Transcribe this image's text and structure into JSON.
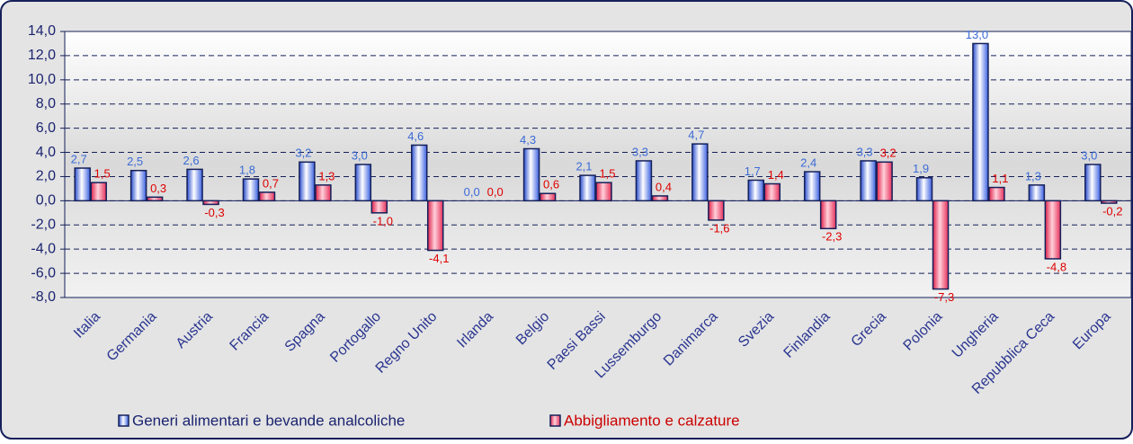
{
  "chart_data": {
    "type": "bar",
    "categories": [
      "Italia",
      "Germania",
      "Austria",
      "Francia",
      "Spagna",
      "Portogallo",
      "Regno Unito",
      "Irlanda",
      "Belgio",
      "Paesi Bassi",
      "Lussemburgo",
      "Danimarca",
      "Svezia",
      "Finlandia",
      "Grecia",
      "Polonia",
      "Ungheria",
      "Repubblica Ceca",
      "Europa"
    ],
    "series": [
      {
        "name": "Generi alimentari e bevande analcoliche",
        "color": "#6f9bff",
        "values": [
          2.7,
          2.5,
          2.6,
          1.8,
          3.2,
          3.0,
          4.6,
          0.0,
          4.3,
          2.1,
          3.3,
          4.7,
          1.7,
          2.4,
          3.3,
          1.9,
          13.0,
          1.3,
          3.0
        ],
        "value_labels": [
          "2,7",
          "2,5",
          "2,6",
          "1,8",
          "3,2",
          "3,0",
          "4,6",
          "0,0",
          "4,3",
          "2,1",
          "3,3",
          "4,7",
          "1,7",
          "2,4",
          "3,3",
          "1,9",
          "13,0",
          "1,3",
          "3,0"
        ]
      },
      {
        "name": "Abbigliamento e calzature",
        "color": "#ff6f8c",
        "values": [
          1.5,
          0.3,
          -0.3,
          0.7,
          1.3,
          -1.0,
          -4.1,
          0.0,
          0.6,
          1.5,
          0.4,
          -1.6,
          1.4,
          -2.3,
          3.2,
          -7.3,
          1.1,
          -4.8,
          -0.2
        ],
        "value_labels": [
          "1,5",
          "0,3",
          "-0,3",
          "0,7",
          "1,3",
          "-1,0",
          "-4,1",
          "0,0",
          "0,6",
          "1,5",
          "0,4",
          "-1,6",
          "1,4",
          "-2,3",
          "3,2",
          "-7,3",
          "1,1",
          "-4,8",
          "-0,2"
        ]
      }
    ],
    "ylim": [
      -8,
      14
    ],
    "yticks": [
      {
        "value": -8,
        "label": "-8,0"
      },
      {
        "value": -6,
        "label": "-6,0"
      },
      {
        "value": -4,
        "label": "-4,0"
      },
      {
        "value": -2,
        "label": "-2,0"
      },
      {
        "value": 0,
        "label": "0,0"
      },
      {
        "value": 2,
        "label": "2,0"
      },
      {
        "value": 4,
        "label": "4,0"
      },
      {
        "value": 6,
        "label": "6,0"
      },
      {
        "value": 8,
        "label": "8,0"
      },
      {
        "value": 10,
        "label": "10,0"
      },
      {
        "value": 12,
        "label": "12,0"
      },
      {
        "value": 14,
        "label": "14,0"
      }
    ],
    "grid": true,
    "legend": "bottom"
  }
}
